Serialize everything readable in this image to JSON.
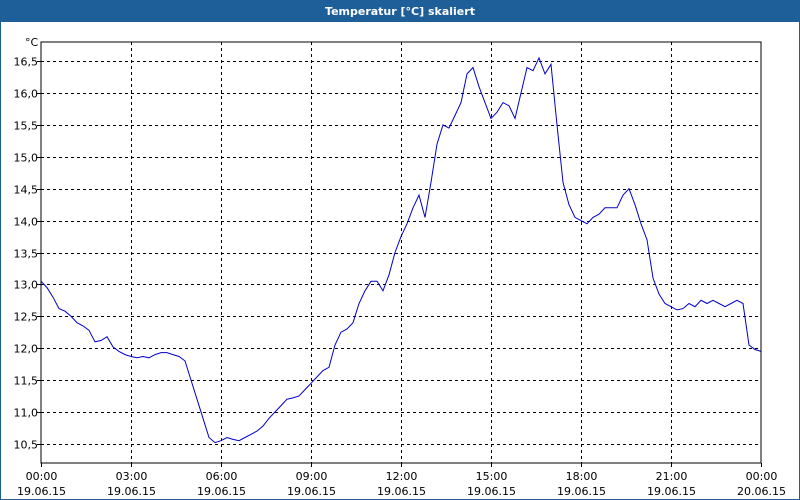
{
  "window": {
    "title": "Temperatur [°C] skaliert"
  },
  "chart_data": {
    "type": "line",
    "title": "Temperatur [°C] skaliert",
    "xlabel": "",
    "ylabel": "°C",
    "x_unit": "time (hours since 19.06.15 00:00)",
    "xlim": [
      0,
      24
    ],
    "ylim": [
      10.2,
      16.8
    ],
    "y_ticks": [
      "10,5",
      "11,0",
      "11,5",
      "12,0",
      "12,5",
      "13,0",
      "13,5",
      "14,0",
      "14,5",
      "15,0",
      "15,5",
      "16,0",
      "16,5"
    ],
    "y_tick_values": [
      10.5,
      11.0,
      11.5,
      12.0,
      12.5,
      13.0,
      13.5,
      14.0,
      14.5,
      15.0,
      15.5,
      16.0,
      16.5
    ],
    "x_ticks": [
      {
        "time": "00:00",
        "date": "19.06.15"
      },
      {
        "time": "03:00",
        "date": "19.06.15"
      },
      {
        "time": "06:00",
        "date": "19.06.15"
      },
      {
        "time": "09:00",
        "date": "19.06.15"
      },
      {
        "time": "12:00",
        "date": "19.06.15"
      },
      {
        "time": "15:00",
        "date": "19.06.15"
      },
      {
        "time": "18:00",
        "date": "19.06.15"
      },
      {
        "time": "21:00",
        "date": "19.06.15"
      },
      {
        "time": "00:00",
        "date": "20.06.15"
      }
    ],
    "grid": true,
    "line_color": "#0000cc",
    "series": [
      {
        "points": [
          [
            0.0,
            13.05
          ],
          [
            0.2,
            12.95
          ],
          [
            0.4,
            12.8
          ],
          [
            0.6,
            12.62
          ],
          [
            0.8,
            12.58
          ],
          [
            1.0,
            12.5
          ],
          [
            1.2,
            12.4
          ],
          [
            1.4,
            12.35
          ],
          [
            1.6,
            12.28
          ],
          [
            1.8,
            12.1
          ],
          [
            2.0,
            12.12
          ],
          [
            2.2,
            12.18
          ],
          [
            2.4,
            12.02
          ],
          [
            2.6,
            11.95
          ],
          [
            2.8,
            11.9
          ],
          [
            3.0,
            11.87
          ],
          [
            3.2,
            11.85
          ],
          [
            3.4,
            11.87
          ],
          [
            3.6,
            11.85
          ],
          [
            3.8,
            11.9
          ],
          [
            4.0,
            11.93
          ],
          [
            4.2,
            11.93
          ],
          [
            4.4,
            11.9
          ],
          [
            4.6,
            11.87
          ],
          [
            4.8,
            11.8
          ],
          [
            5.0,
            11.5
          ],
          [
            5.2,
            11.2
          ],
          [
            5.4,
            10.9
          ],
          [
            5.6,
            10.6
          ],
          [
            5.8,
            10.52
          ],
          [
            6.0,
            10.55
          ],
          [
            6.2,
            10.6
          ],
          [
            6.4,
            10.57
          ],
          [
            6.6,
            10.55
          ],
          [
            6.8,
            10.6
          ],
          [
            7.0,
            10.65
          ],
          [
            7.2,
            10.7
          ],
          [
            7.4,
            10.78
          ],
          [
            7.6,
            10.9
          ],
          [
            7.8,
            11.0
          ],
          [
            8.0,
            11.1
          ],
          [
            8.2,
            11.2
          ],
          [
            8.4,
            11.22
          ],
          [
            8.6,
            11.25
          ],
          [
            8.8,
            11.35
          ],
          [
            9.0,
            11.45
          ],
          [
            9.2,
            11.55
          ],
          [
            9.4,
            11.65
          ],
          [
            9.6,
            11.7
          ],
          [
            9.8,
            12.05
          ],
          [
            10.0,
            12.25
          ],
          [
            10.2,
            12.3
          ],
          [
            10.4,
            12.4
          ],
          [
            10.6,
            12.7
          ],
          [
            10.8,
            12.9
          ],
          [
            11.0,
            13.05
          ],
          [
            11.2,
            13.05
          ],
          [
            11.4,
            12.9
          ],
          [
            11.6,
            13.15
          ],
          [
            11.8,
            13.5
          ],
          [
            12.0,
            13.75
          ],
          [
            12.2,
            13.95
          ],
          [
            12.4,
            14.2
          ],
          [
            12.6,
            14.4
          ],
          [
            12.8,
            14.05
          ],
          [
            13.0,
            14.6
          ],
          [
            13.2,
            15.2
          ],
          [
            13.4,
            15.5
          ],
          [
            13.6,
            15.45
          ],
          [
            13.8,
            15.65
          ],
          [
            14.0,
            15.85
          ],
          [
            14.2,
            16.3
          ],
          [
            14.4,
            16.4
          ],
          [
            14.6,
            16.1
          ],
          [
            14.8,
            15.85
          ],
          [
            15.0,
            15.6
          ],
          [
            15.2,
            15.7
          ],
          [
            15.4,
            15.85
          ],
          [
            15.6,
            15.8
          ],
          [
            15.8,
            15.6
          ],
          [
            16.0,
            16.0
          ],
          [
            16.2,
            16.4
          ],
          [
            16.4,
            16.35
          ],
          [
            16.6,
            16.55
          ],
          [
            16.8,
            16.3
          ],
          [
            17.0,
            16.45
          ],
          [
            17.2,
            15.5
          ],
          [
            17.4,
            14.6
          ],
          [
            17.6,
            14.25
          ],
          [
            17.8,
            14.05
          ],
          [
            18.0,
            14.0
          ],
          [
            18.2,
            13.95
          ],
          [
            18.4,
            14.05
          ],
          [
            18.6,
            14.1
          ],
          [
            18.8,
            14.2
          ],
          [
            19.0,
            14.2
          ],
          [
            19.2,
            14.2
          ],
          [
            19.4,
            14.4
          ],
          [
            19.6,
            14.5
          ],
          [
            19.8,
            14.25
          ],
          [
            20.0,
            13.95
          ],
          [
            20.2,
            13.7
          ],
          [
            20.4,
            13.1
          ],
          [
            20.6,
            12.85
          ],
          [
            20.8,
            12.7
          ],
          [
            21.0,
            12.65
          ],
          [
            21.2,
            12.6
          ],
          [
            21.4,
            12.62
          ],
          [
            21.6,
            12.7
          ],
          [
            21.8,
            12.65
          ],
          [
            22.0,
            12.75
          ],
          [
            22.2,
            12.7
          ],
          [
            22.4,
            12.75
          ],
          [
            22.6,
            12.7
          ],
          [
            22.8,
            12.65
          ],
          [
            23.0,
            12.7
          ],
          [
            23.2,
            12.75
          ],
          [
            23.4,
            12.7
          ],
          [
            23.6,
            12.05
          ],
          [
            23.8,
            11.98
          ],
          [
            24.0,
            11.95
          ]
        ]
      }
    ]
  }
}
